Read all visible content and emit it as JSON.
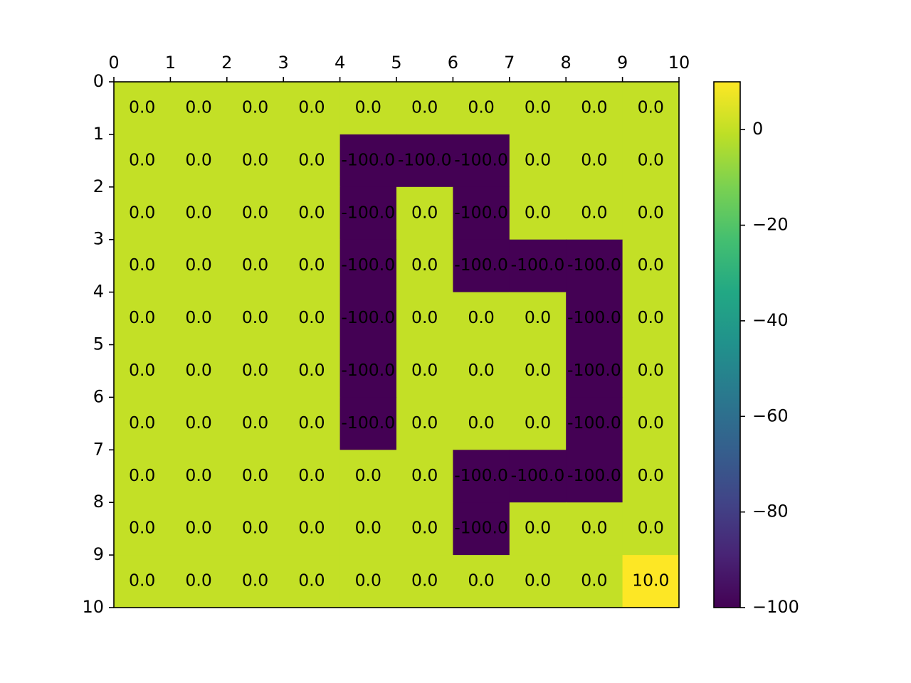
{
  "chart_data": {
    "type": "heatmap",
    "title": "",
    "xlabel": "",
    "ylabel": "",
    "x_tick_labels": [
      "0",
      "1",
      "2",
      "3",
      "4",
      "5",
      "6",
      "7",
      "8",
      "9",
      "10"
    ],
    "y_tick_labels": [
      "0",
      "1",
      "2",
      "3",
      "4",
      "5",
      "6",
      "7",
      "8",
      "9",
      "10"
    ],
    "x_axis_position": "top",
    "xlim": [
      0,
      10
    ],
    "ylim": [
      10,
      0
    ],
    "grid": false,
    "values": [
      [
        0,
        0,
        0,
        0,
        0,
        0,
        0,
        0,
        0,
        0
      ],
      [
        0,
        0,
        0,
        0,
        -100,
        -100,
        -100,
        0,
        0,
        0
      ],
      [
        0,
        0,
        0,
        0,
        -100,
        0,
        -100,
        0,
        0,
        0
      ],
      [
        0,
        0,
        0,
        0,
        -100,
        0,
        -100,
        -100,
        -100,
        0
      ],
      [
        0,
        0,
        0,
        0,
        -100,
        0,
        0,
        0,
        -100,
        0
      ],
      [
        0,
        0,
        0,
        0,
        -100,
        0,
        0,
        0,
        -100,
        0
      ],
      [
        0,
        0,
        0,
        0,
        -100,
        0,
        0,
        0,
        -100,
        0
      ],
      [
        0,
        0,
        0,
        0,
        0,
        0,
        -100,
        -100,
        -100,
        0
      ],
      [
        0,
        0,
        0,
        0,
        0,
        0,
        -100,
        0,
        0,
        0
      ],
      [
        0,
        0,
        0,
        0,
        0,
        0,
        0,
        0,
        0,
        10
      ]
    ],
    "cell_labels": [
      [
        "0.0",
        "0.0",
        "0.0",
        "0.0",
        "0.0",
        "0.0",
        "0.0",
        "0.0",
        "0.0",
        "0.0"
      ],
      [
        "0.0",
        "0.0",
        "0.0",
        "0.0",
        "-100.0",
        "-100.0",
        "-100.0",
        "0.0",
        "0.0",
        "0.0"
      ],
      [
        "0.0",
        "0.0",
        "0.0",
        "0.0",
        "-100.0",
        "0.0",
        "-100.0",
        "0.0",
        "0.0",
        "0.0"
      ],
      [
        "0.0",
        "0.0",
        "0.0",
        "0.0",
        "-100.0",
        "0.0",
        "-100.0",
        "-100.0",
        "-100.0",
        "0.0"
      ],
      [
        "0.0",
        "0.0",
        "0.0",
        "0.0",
        "-100.0",
        "0.0",
        "0.0",
        "0.0",
        "-100.0",
        "0.0"
      ],
      [
        "0.0",
        "0.0",
        "0.0",
        "0.0",
        "-100.0",
        "0.0",
        "0.0",
        "0.0",
        "-100.0",
        "0.0"
      ],
      [
        "0.0",
        "0.0",
        "0.0",
        "0.0",
        "-100.0",
        "0.0",
        "0.0",
        "0.0",
        "-100.0",
        "0.0"
      ],
      [
        "0.0",
        "0.0",
        "0.0",
        "0.0",
        "0.0",
        "0.0",
        "-100.0",
        "-100.0",
        "-100.0",
        "0.0"
      ],
      [
        "0.0",
        "0.0",
        "0.0",
        "0.0",
        "0.0",
        "0.0",
        "-100.0",
        "0.0",
        "0.0",
        "0.0"
      ],
      [
        "0.0",
        "0.0",
        "0.0",
        "0.0",
        "0.0",
        "0.0",
        "0.0",
        "0.0",
        "0.0",
        "10.0"
      ]
    ],
    "colormap": "viridis",
    "colorbar": {
      "range": [
        -100,
        10
      ],
      "ticks": [
        0,
        -20,
        -40,
        -60,
        -80,
        -100
      ],
      "tick_labels": [
        "0",
        "−20",
        "−40",
        "−60",
        "−80",
        "−100"
      ],
      "position": "right"
    }
  }
}
